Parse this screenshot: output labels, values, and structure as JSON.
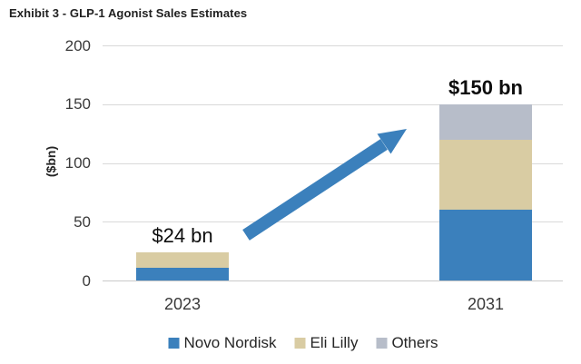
{
  "title": "Exhibit 3 - GLP-1 Agonist Sales Estimates",
  "colors": {
    "novo_nordisk": "#3b80bc",
    "eli_lilly": "#d9cca3",
    "others": "#b7bdc9",
    "arrow": "#3b80bc",
    "gridline": "#d9d9d9",
    "text_dark": "#262626"
  },
  "chart_data": {
    "type": "bar",
    "stacked": true,
    "title": "Exhibit 3 - GLP-1 Agonist Sales Estimates",
    "categories": [
      "2023",
      "2031"
    ],
    "series": [
      {
        "name": "Novo Nordisk",
        "color_key": "novo_nordisk",
        "values": [
          11,
          60
        ]
      },
      {
        "name": "Eli Lilly",
        "color_key": "eli_lilly",
        "values": [
          13,
          60
        ]
      },
      {
        "name": "Others",
        "color_key": "others",
        "values": [
          0,
          30
        ]
      }
    ],
    "totals": [
      {
        "text": "$24 bn",
        "emphasis": false
      },
      {
        "text": "$150 bn",
        "emphasis": true
      }
    ],
    "xlabel": "",
    "ylabel": "($bn)",
    "ylim": [
      0,
      200
    ],
    "yticks": [
      0,
      50,
      100,
      150,
      200
    ],
    "grid": true,
    "legend_position": "bottom",
    "annotations": [
      {
        "type": "arrow",
        "from_category": "2023",
        "to_category": "2031",
        "meaning": "growth from $24 bn to $150 bn"
      }
    ]
  }
}
